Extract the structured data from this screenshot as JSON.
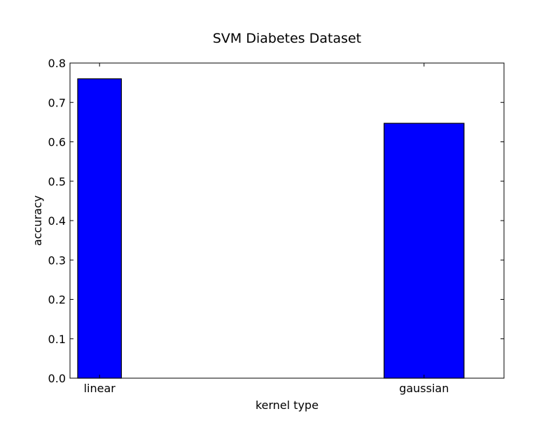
{
  "chart_data": {
    "type": "bar",
    "title": "SVM Diabetes Dataset",
    "xlabel": "kernel type",
    "ylabel": "accuracy",
    "categories": [
      "linear",
      "gaussian"
    ],
    "values": [
      0.76,
      0.647
    ],
    "ylim": [
      0.0,
      0.8
    ],
    "yticks": [
      "0.0",
      "0.1",
      "0.2",
      "0.3",
      "0.4",
      "0.5",
      "0.6",
      "0.7",
      "0.8"
    ],
    "bar_color": "#0000ff",
    "edge_color": "#000000",
    "grid": false,
    "legend": "none"
  }
}
